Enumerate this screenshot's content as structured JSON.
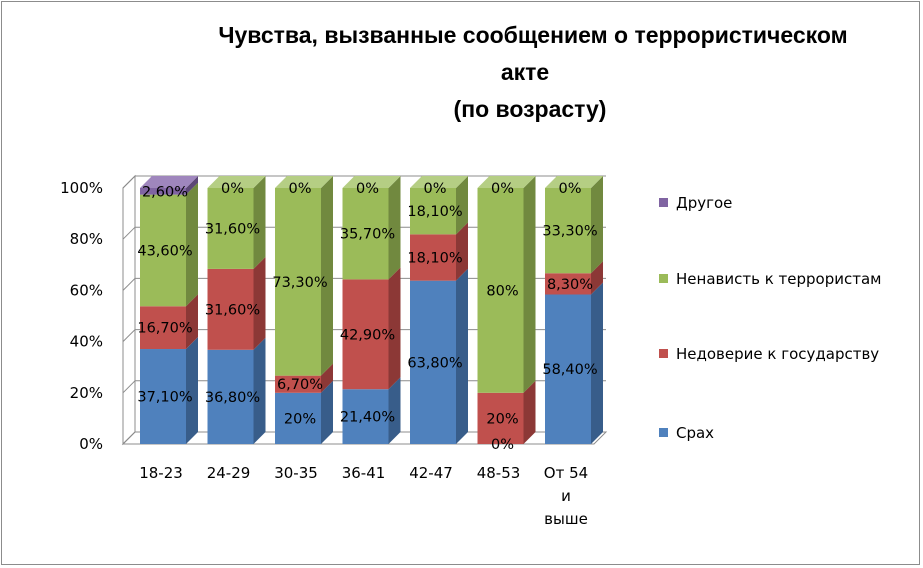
{
  "chart_data": {
    "type": "bar",
    "stacked": true,
    "style": "3d-stacked-column",
    "title_lines": [
      "Чувства, вызванные сообщением о террористическом",
      "акте",
      "(по возрасту)"
    ],
    "categories": [
      [
        "18-23"
      ],
      [
        "24-29"
      ],
      [
        "30-35"
      ],
      [
        "36-41"
      ],
      [
        "42-47"
      ],
      [
        "48-53"
      ],
      [
        "От 54",
        "и",
        "выше"
      ]
    ],
    "series": [
      {
        "name": "Срах",
        "color": "#4F81BD",
        "side": "#385D8A",
        "top": "#7FA1D1",
        "values": [
          37.1,
          36.8,
          20,
          21.4,
          63.8,
          0,
          58.4
        ],
        "labels": [
          "37,10%",
          "36,80%",
          "20%",
          "21,40%",
          "63,80%",
          "0%",
          "58,40%"
        ]
      },
      {
        "name": "Недоверие к государству",
        "color": "#C0504D",
        "side": "#8C3836",
        "top": "#D6807E",
        "values": [
          16.7,
          31.6,
          6.7,
          42.9,
          18.1,
          20,
          8.3
        ],
        "labels": [
          "16,70%",
          "31,60%",
          "6,70%",
          "42,90%",
          "18,10%",
          "20%",
          "8,30%"
        ]
      },
      {
        "name": "Ненависть к террористам",
        "color": "#9BBB59",
        "side": "#71893F",
        "top": "#B5CE84",
        "values": [
          43.6,
          31.6,
          73.3,
          35.7,
          18.1,
          80,
          33.3
        ],
        "labels": [
          "43,60%",
          "31,60%",
          "73,30%",
          "35,70%",
          "18,10%",
          "80%",
          "33,30%"
        ]
      },
      {
        "name": "Другое",
        "color": "#8064A2",
        "side": "#5C4776",
        "top": "#9F86BD",
        "values": [
          2.6,
          0,
          0,
          0,
          0,
          0,
          0
        ],
        "labels": [
          "2,60%",
          "0%",
          "0%",
          "0%",
          "0%",
          "0%",
          "0%"
        ]
      }
    ],
    "y_ticks": [
      "0%",
      "20%",
      "40%",
      "60%",
      "80%",
      "100%"
    ],
    "ylim": [
      0,
      100
    ],
    "grid": true,
    "legend_position": "right",
    "legend_order": [
      "Другое",
      "Ненависть к террористам",
      "Недоверие к государству",
      "Срах"
    ],
    "grid_color": "#8c8c8c",
    "wall_color": "#ffffff"
  }
}
